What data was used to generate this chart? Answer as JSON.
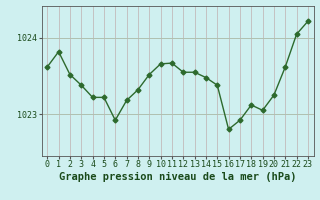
{
  "x": [
    0,
    1,
    2,
    3,
    4,
    5,
    6,
    7,
    8,
    9,
    10,
    11,
    12,
    13,
    14,
    15,
    16,
    17,
    18,
    19,
    20,
    21,
    22,
    23
  ],
  "y": [
    1023.62,
    1023.82,
    1023.52,
    1023.38,
    1023.22,
    1023.22,
    1022.92,
    1023.18,
    1023.32,
    1023.52,
    1023.66,
    1023.67,
    1023.55,
    1023.55,
    1023.48,
    1023.38,
    1022.8,
    1022.92,
    1023.12,
    1023.05,
    1023.25,
    1023.62,
    1024.05,
    1024.22
  ],
  "line_color": "#2d6a2d",
  "marker": "D",
  "marker_size": 2.5,
  "bg_color": "#cff0f0",
  "plot_bg_color": "#cff0f0",
  "grid_color_v": "#c0b0b0",
  "grid_color_h": "#b0c0b0",
  "xlabel": "Graphe pression niveau de la mer (hPa)",
  "xlabel_fontsize": 7.5,
  "ytick_labels": [
    "1023",
    "1024"
  ],
  "ytick_vals": [
    1023,
    1024
  ],
  "ylim": [
    1022.45,
    1024.42
  ],
  "xlim": [
    -0.5,
    23.5
  ],
  "xticks": [
    0,
    1,
    2,
    3,
    4,
    5,
    6,
    7,
    8,
    9,
    10,
    11,
    12,
    13,
    14,
    15,
    16,
    17,
    18,
    19,
    20,
    21,
    22,
    23
  ],
  "tick_fontsize": 6.0,
  "line_width": 1.0,
  "spine_color": "#555555"
}
